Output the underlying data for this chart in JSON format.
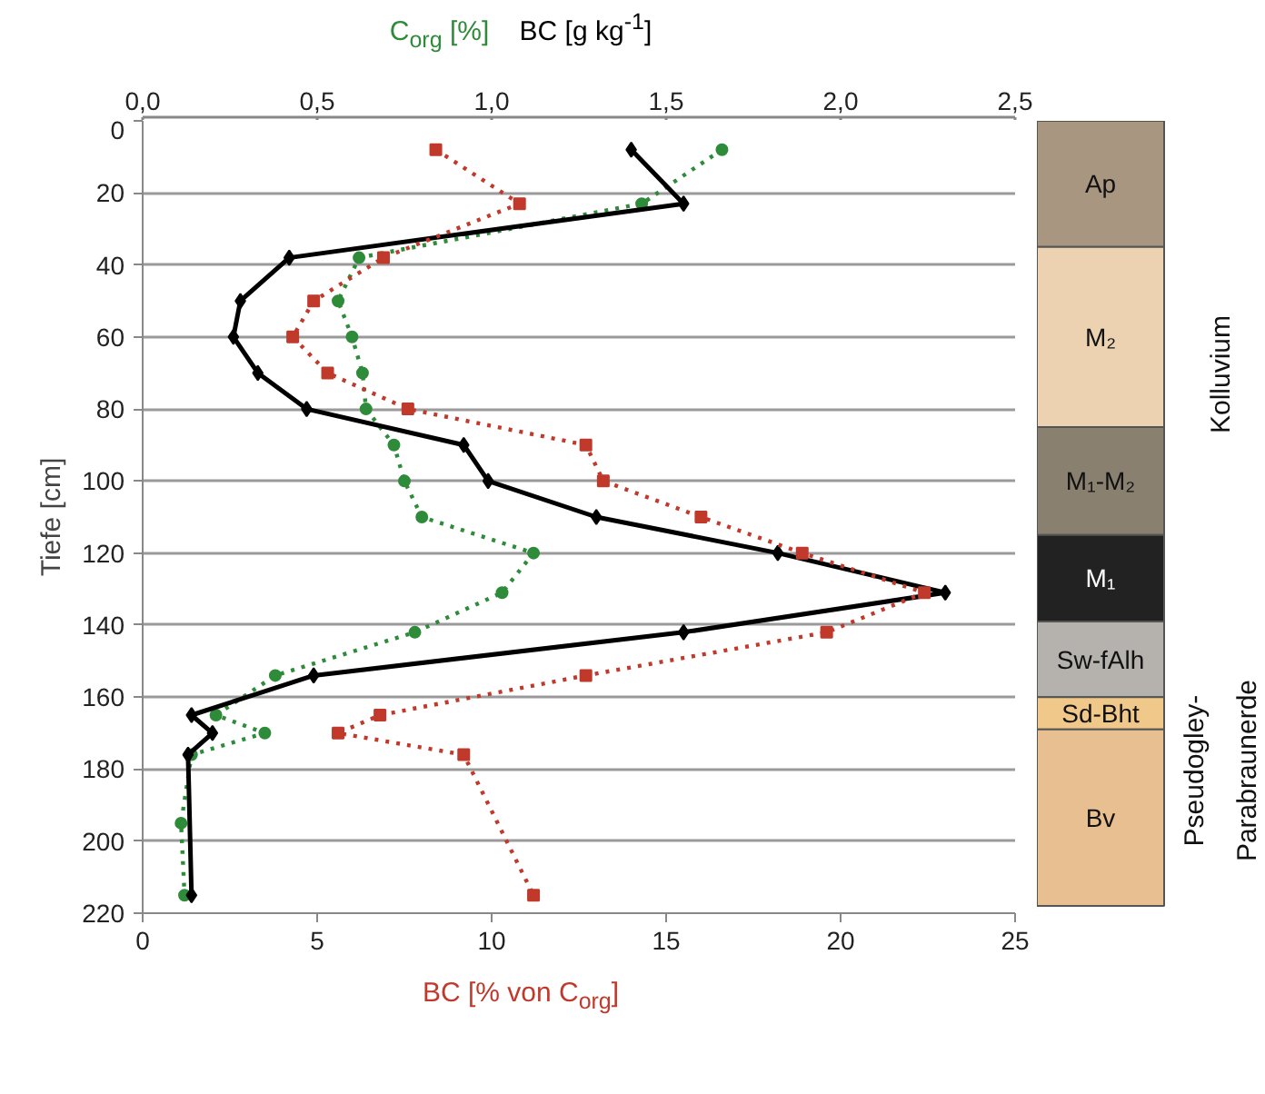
{
  "chart_data": [
    {
      "type": "line",
      "ylabel": "Tiefe [cm]",
      "ylim": [
        220,
        0
      ],
      "yticks": [
        0,
        20,
        40,
        60,
        80,
        100,
        120,
        140,
        160,
        180,
        200,
        220
      ],
      "xlim": [
        0,
        25
      ],
      "xticks": [
        0,
        5,
        10,
        15,
        20,
        25
      ],
      "x2lim": [
        0,
        2.5
      ],
      "x2ticks": [
        {
          "value": 0,
          "label": "0,0"
        },
        {
          "value": 0.5,
          "label": "0,5"
        },
        {
          "value": 1,
          "label": "1,0"
        },
        {
          "value": 1.5,
          "label": "1,5"
        },
        {
          "value": 2,
          "label": "2,0"
        },
        {
          "value": 2.5,
          "label": "2,5"
        }
      ],
      "grid": "y",
      "series": [
        {
          "name": "C$_{org}$ [%]",
          "color": "#2e8b3a",
          "axis": "x2",
          "marker": "circle",
          "line_style": "dotted",
          "x": [
            1.66,
            1.43,
            0.62,
            0.56,
            0.6,
            0.63,
            0.64,
            0.72,
            0.75,
            0.8,
            1.12,
            1.03,
            0.78,
            0.38,
            0.21,
            0.35,
            0.14,
            0.11,
            0.12
          ],
          "values": [
            8,
            23,
            38,
            50,
            60,
            70,
            80,
            90,
            100,
            110,
            120,
            131,
            142,
            154,
            165,
            170,
            176,
            195,
            215
          ]
        },
        {
          "name": "BC [g kg$^{-1}$]",
          "color": "#000000",
          "axis": "x2",
          "marker": "diamond",
          "line_style": "solid",
          "x": [
            1.4,
            1.55,
            0.42,
            0.28,
            0.26,
            0.33,
            0.47,
            0.92,
            0.99,
            1.3,
            1.82,
            2.3,
            1.55,
            0.49,
            0.14,
            0.2,
            0.13,
            0.14
          ],
          "values": [
            8,
            23,
            38,
            50,
            60,
            70,
            80,
            90,
            100,
            110,
            120,
            131,
            142,
            154,
            165,
            170,
            176,
            215
          ]
        },
        {
          "name": "BC [% von C$_{org}$]",
          "color": "#c0392b",
          "marker": "square",
          "line_style": "dotted",
          "x": [
            8.4,
            10.8,
            6.9,
            4.9,
            4.3,
            5.3,
            7.6,
            12.7,
            13.2,
            16.0,
            18.9,
            22.4,
            19.6,
            12.7,
            6.8,
            5.6,
            9.2,
            11.2
          ],
          "values": [
            8,
            23,
            38,
            50,
            60,
            70,
            80,
            90,
            100,
            110,
            120,
            131,
            142,
            154,
            165,
            170,
            176,
            215
          ]
        }
      ]
    },
    {
      "type": "bar",
      "stacked": true,
      "categories": [
        null
      ],
      "ylim": [
        220,
        0
      ],
      "tick_labels": false,
      "annotations": [
        "Kolluvium",
        "Pseudogley-\nParabraunerde"
      ],
      "series": [
        {
          "name": "Ap",
          "color": "#a89680",
          "values": [
            35
          ]
        },
        {
          "name": "M₂",
          "color": "#ecd2b0",
          "values": [
            50
          ]
        },
        {
          "name": "M₁-M₂",
          "color": "#8a8070",
          "values": [
            30
          ]
        },
        {
          "name": "M₁",
          "color": "#222222",
          "values": [
            24
          ]
        },
        {
          "name": "Sw-fAlh",
          "color": "#b5b1ac",
          "values": [
            21
          ]
        },
        {
          "name": "Sd-Bht",
          "color": "#f0c88a",
          "values": [
            9
          ]
        },
        {
          "name": "Bv",
          "color": "#e8bf90",
          "values": [
            49
          ]
        }
      ]
    }
  ]
}
